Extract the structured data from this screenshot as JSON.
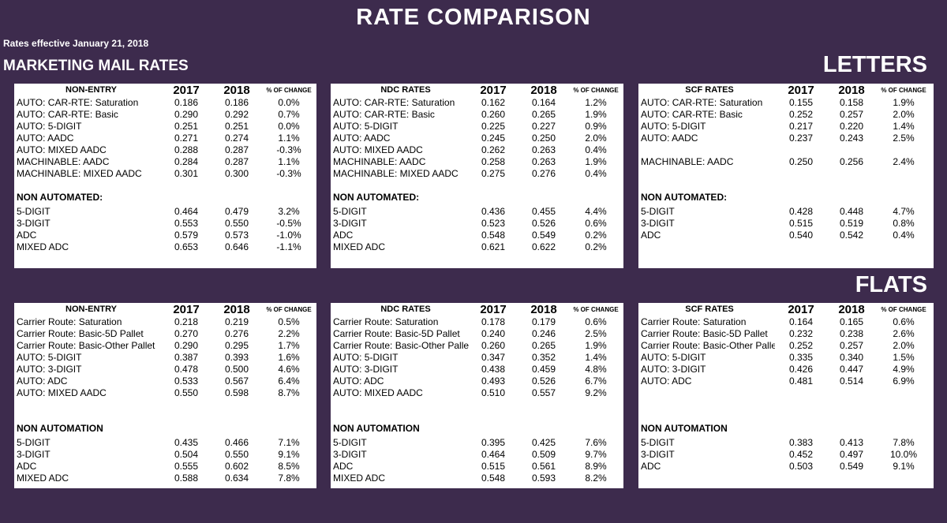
{
  "title": "RATE COMPARISON",
  "effective": "Rates effective January 21, 2018",
  "marketing_title": "MARKETING MAIL RATES",
  "letters_title": "LETTERS",
  "flats_title": "FLATS",
  "letters": [
    {
      "header": "NON-ENTRY",
      "y1": "2017",
      "y2": "2018",
      "pct": "% OF CHANGE",
      "auto_rows": [
        {
          "label": "AUTO:   CAR-RTE: Saturation",
          "v1": "0.186",
          "v2": "0.186",
          "pct": "0.0%"
        },
        {
          "label": "AUTO:   CAR-RTE: Basic",
          "v1": "0.290",
          "v2": "0.292",
          "pct": "0.7%"
        },
        {
          "label": "AUTO:   5-DIGIT",
          "v1": "0.251",
          "v2": "0.251",
          "pct": "0.0%"
        },
        {
          "label": "AUTO:   AADC",
          "v1": "0.271",
          "v2": "0.274",
          "pct": "1.1%"
        },
        {
          "label": "AUTO:   MIXED AADC",
          "v1": "0.288",
          "v2": "0.287",
          "pct": "-0.3%"
        },
        {
          "label": "MACHINABLE:  AADC",
          "v1": "0.284",
          "v2": "0.287",
          "pct": "1.1%"
        },
        {
          "label": "MACHINABLE: MIXED AADC",
          "v1": "0.301",
          "v2": "0.300",
          "pct": "-0.3%"
        }
      ],
      "sub_title": "NON AUTOMATED:",
      "non_rows": [
        {
          "label": "5-DIGIT",
          "v1": "0.464",
          "v2": "0.479",
          "pct": "3.2%"
        },
        {
          "label": "3-DIGIT",
          "v1": "0.553",
          "v2": "0.550",
          "pct": "-0.5%"
        },
        {
          "label": "ADC",
          "v1": "0.579",
          "v2": "0.573",
          "pct": "-1.0%"
        },
        {
          "label": "MIXED ADC",
          "v1": "0.653",
          "v2": "0.646",
          "pct": "-1.1%"
        }
      ]
    },
    {
      "header": "NDC RATES",
      "y1": "2017",
      "y2": "2018",
      "pct": "% OF CHANGE",
      "auto_rows": [
        {
          "label": "AUTO:   CAR-RTE: Saturation",
          "v1": "0.162",
          "v2": "0.164",
          "pct": "1.2%"
        },
        {
          "label": "AUTO:   CAR-RTE: Basic",
          "v1": "0.260",
          "v2": "0.265",
          "pct": "1.9%"
        },
        {
          "label": "AUTO:   5-DIGIT",
          "v1": "0.225",
          "v2": "0.227",
          "pct": "0.9%"
        },
        {
          "label": "AUTO:   AADC",
          "v1": "0.245",
          "v2": "0.250",
          "pct": "2.0%"
        },
        {
          "label": "AUTO:   MIXED AADC",
          "v1": "0.262",
          "v2": "0.263",
          "pct": "0.4%"
        },
        {
          "label": "MACHINABLE:  AADC",
          "v1": "0.258",
          "v2": "0.263",
          "pct": "1.9%"
        },
        {
          "label": "MACHINABLE: MIXED AADC",
          "v1": "0.275",
          "v2": "0.276",
          "pct": "0.4%"
        }
      ],
      "sub_title": "NON AUTOMATED:",
      "non_rows": [
        {
          "label": "5-DIGIT",
          "v1": "0.436",
          "v2": "0.455",
          "pct": "4.4%"
        },
        {
          "label": "3-DIGIT",
          "v1": "0.523",
          "v2": "0.526",
          "pct": "0.6%"
        },
        {
          "label": "ADC",
          "v1": "0.548",
          "v2": "0.549",
          "pct": "0.2%"
        },
        {
          "label": "MIXED ADC",
          "v1": "0.621",
          "v2": "0.622",
          "pct": "0.2%"
        }
      ]
    },
    {
      "header": "SCF RATES",
      "y1": "2017",
      "y2": "2018",
      "pct": "% OF CHANGE",
      "auto_rows": [
        {
          "label": "AUTO:   CAR-RTE: Saturation",
          "v1": "0.155",
          "v2": "0.158",
          "pct": "1.9%"
        },
        {
          "label": "AUTO:   CAR-RTE: Basic",
          "v1": "0.252",
          "v2": "0.257",
          "pct": "2.0%"
        },
        {
          "label": "AUTO:   5-DIGIT",
          "v1": "0.217",
          "v2": "0.220",
          "pct": "1.4%"
        },
        {
          "label": "AUTO:   AADC",
          "v1": "0.237",
          "v2": "0.243",
          "pct": "2.5%"
        },
        {
          "label": "",
          "v1": "",
          "v2": "",
          "pct": ""
        },
        {
          "label": "MACHINABLE:  AADC",
          "v1": "0.250",
          "v2": "0.256",
          "pct": "2.4%"
        },
        {
          "label": "",
          "v1": "",
          "v2": "",
          "pct": ""
        }
      ],
      "sub_title": "NON AUTOMATED:",
      "non_rows": [
        {
          "label": "5-DIGIT",
          "v1": "0.428",
          "v2": "0.448",
          "pct": "4.7%"
        },
        {
          "label": "3-DIGIT",
          "v1": "0.515",
          "v2": "0.519",
          "pct": "0.8%"
        },
        {
          "label": "ADC",
          "v1": "0.540",
          "v2": "0.542",
          "pct": "0.4%"
        }
      ]
    }
  ],
  "flats": [
    {
      "header": "NON-ENTRY",
      "y1": "2017",
      "y2": "2018",
      "pct": "% OF CHANGE",
      "auto_rows": [
        {
          "label": "Carrier Route: Saturation",
          "v1": "0.218",
          "v2": "0.219",
          "pct": "0.5%"
        },
        {
          "label": "Carrier Route: Basic-5D Pallet",
          "v1": "0.270",
          "v2": "0.276",
          "pct": "2.2%"
        },
        {
          "label": "Carrier Route: Basic-Other Pallet",
          "v1": "0.290",
          "v2": "0.295",
          "pct": "1.7%"
        },
        {
          "label": "AUTO:   5-DIGIT",
          "v1": "0.387",
          "v2": "0.393",
          "pct": "1.6%"
        },
        {
          "label": "AUTO:   3-DIGIT",
          "v1": "0.478",
          "v2": "0.500",
          "pct": "4.6%"
        },
        {
          "label": "AUTO:   ADC",
          "v1": "0.533",
          "v2": "0.567",
          "pct": "6.4%"
        },
        {
          "label": "AUTO:   MIXED AADC",
          "v1": "0.550",
          "v2": "0.598",
          "pct": "8.7%"
        }
      ],
      "sub_title": "NON AUTOMATION",
      "non_rows": [
        {
          "label": "5-DIGIT",
          "v1": "0.435",
          "v2": "0.466",
          "pct": "7.1%"
        },
        {
          "label": "3-DIGIT",
          "v1": "0.504",
          "v2": "0.550",
          "pct": "9.1%"
        },
        {
          "label": "ADC",
          "v1": "0.555",
          "v2": "0.602",
          "pct": "8.5%"
        },
        {
          "label": "MIXED ADC",
          "v1": "0.588",
          "v2": "0.634",
          "pct": "7.8%"
        }
      ]
    },
    {
      "header": "NDC RATES",
      "y1": "2017",
      "y2": "2018",
      "pct": "% OF CHANGE",
      "auto_rows": [
        {
          "label": "Carrier Route: Saturation",
          "v1": "0.178",
          "v2": "0.179",
          "pct": "0.6%"
        },
        {
          "label": "Carrier Route: Basic-5D Pallet",
          "v1": "0.240",
          "v2": "0.246",
          "pct": "2.5%"
        },
        {
          "label": "Carrier Route: Basic-Other Palle",
          "v1": "0.260",
          "v2": "0.265",
          "pct": "1.9%"
        },
        {
          "label": "AUTO:   5-DIGIT",
          "v1": "0.347",
          "v2": "0.352",
          "pct": "1.4%"
        },
        {
          "label": "AUTO:   3-DIGIT",
          "v1": "0.438",
          "v2": "0.459",
          "pct": "4.8%"
        },
        {
          "label": "AUTO:   ADC",
          "v1": "0.493",
          "v2": "0.526",
          "pct": "6.7%"
        },
        {
          "label": "AUTO:   MIXED AADC",
          "v1": "0.510",
          "v2": "0.557",
          "pct": "9.2%"
        }
      ],
      "sub_title": "NON AUTOMATION",
      "non_rows": [
        {
          "label": "5-DIGIT",
          "v1": "0.395",
          "v2": "0.425",
          "pct": "7.6%"
        },
        {
          "label": "3-DIGIT",
          "v1": "0.464",
          "v2": "0.509",
          "pct": "9.7%"
        },
        {
          "label": "ADC",
          "v1": "0.515",
          "v2": "0.561",
          "pct": "8.9%"
        },
        {
          "label": "MIXED ADC",
          "v1": "0.548",
          "v2": "0.593",
          "pct": "8.2%"
        }
      ]
    },
    {
      "header": "SCF RATES",
      "y1": "2017",
      "y2": "2018",
      "pct": "% OF CHANGE",
      "auto_rows": [
        {
          "label": "Carrier Route: Saturation",
          "v1": "0.164",
          "v2": "0.165",
          "pct": "0.6%"
        },
        {
          "label": "Carrier Route: Basic-5D Pallet",
          "v1": "0.232",
          "v2": "0.238",
          "pct": "2.6%"
        },
        {
          "label": "Carrier Route: Basic-Other Palle",
          "v1": "0.252",
          "v2": "0.257",
          "pct": "2.0%"
        },
        {
          "label": "AUTO:   5-DIGIT",
          "v1": "0.335",
          "v2": "0.340",
          "pct": "1.5%"
        },
        {
          "label": "AUTO:   3-DIGIT",
          "v1": "0.426",
          "v2": "0.447",
          "pct": "4.9%"
        },
        {
          "label": "AUTO:   ADC",
          "v1": "0.481",
          "v2": "0.514",
          "pct": "6.9%"
        },
        {
          "label": "",
          "v1": "",
          "v2": "",
          "pct": ""
        }
      ],
      "sub_title": "NON AUTOMATION",
      "non_rows": [
        {
          "label": "5-DIGIT",
          "v1": "0.383",
          "v2": "0.413",
          "pct": "7.8%"
        },
        {
          "label": "3-DIGIT",
          "v1": "0.452",
          "v2": "0.497",
          "pct": "10.0%"
        },
        {
          "label": "ADC",
          "v1": "0.503",
          "v2": "0.549",
          "pct": "9.1%"
        }
      ]
    }
  ]
}
